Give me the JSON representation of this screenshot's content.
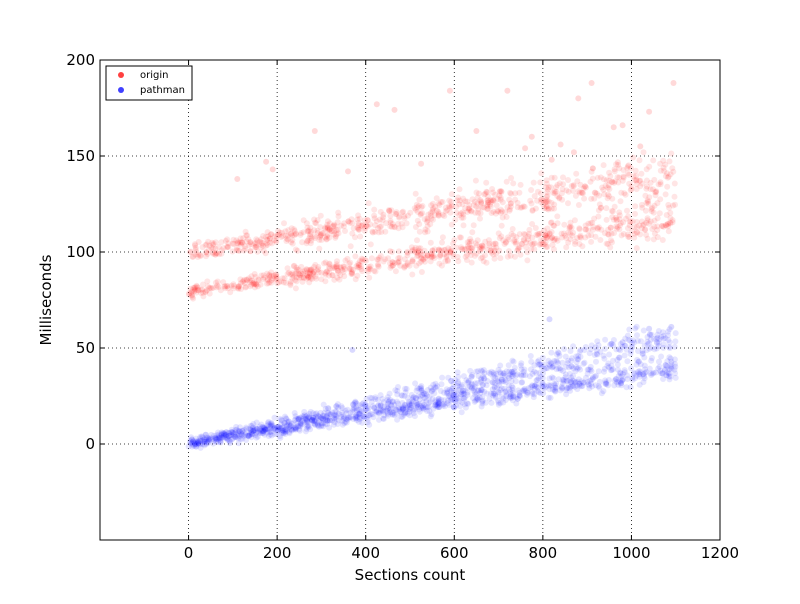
{
  "chart_data": {
    "type": "scatter",
    "xlabel": "Sections count",
    "ylabel": "Milliseconds",
    "xlim": [
      -200,
      1200
    ],
    "ylim": [
      -50,
      200
    ],
    "xticks": [
      0,
      200,
      400,
      600,
      800,
      1000,
      1200
    ],
    "yticks": [
      0,
      50,
      100,
      150,
      200
    ],
    "xtick_labels": [
      "0",
      "200",
      "400",
      "600",
      "800",
      "1000",
      "1200"
    ],
    "ytick_labels": [
      "0",
      "50",
      "100",
      "150",
      "200"
    ],
    "grid": true,
    "legend_position": "top-left",
    "series": [
      {
        "name": "origin",
        "color": "#ff0000",
        "bands": [
          {
            "x_range": [
              0,
              1100
            ],
            "y_start": 79,
            "y_end": 118,
            "spread": 3.5
          },
          {
            "x_range": [
              0,
              1100
            ],
            "y_start": 100,
            "y_end": 140,
            "spread": 4.5
          }
        ],
        "outliers": [
          [
            110,
            138
          ],
          [
            175,
            147
          ],
          [
            190,
            143
          ],
          [
            285,
            163
          ],
          [
            360,
            142
          ],
          [
            425,
            177
          ],
          [
            465,
            174
          ],
          [
            525,
            146
          ],
          [
            590,
            184
          ],
          [
            650,
            163
          ],
          [
            720,
            184
          ],
          [
            760,
            154
          ],
          [
            775,
            160
          ],
          [
            820,
            148
          ],
          [
            840,
            156
          ],
          [
            870,
            152
          ],
          [
            880,
            180
          ],
          [
            910,
            188
          ],
          [
            960,
            165
          ],
          [
            980,
            166
          ],
          [
            1020,
            155
          ],
          [
            1040,
            173
          ],
          [
            1095,
            188
          ]
        ]
      },
      {
        "name": "pathman",
        "color": "#0000ff",
        "bands": [
          {
            "x_range": [
              0,
              1100
            ],
            "y_start": 0,
            "y_end": 40,
            "spread": 2.2
          },
          {
            "x_range": [
              0,
              1100
            ],
            "y_start": 0,
            "y_end": 55,
            "spread": 2.8
          }
        ],
        "outliers": [
          [
            370,
            49
          ],
          [
            815,
            65
          ],
          [
            980,
            53
          ],
          [
            1040,
            60
          ],
          [
            1090,
            61
          ]
        ]
      }
    ]
  }
}
